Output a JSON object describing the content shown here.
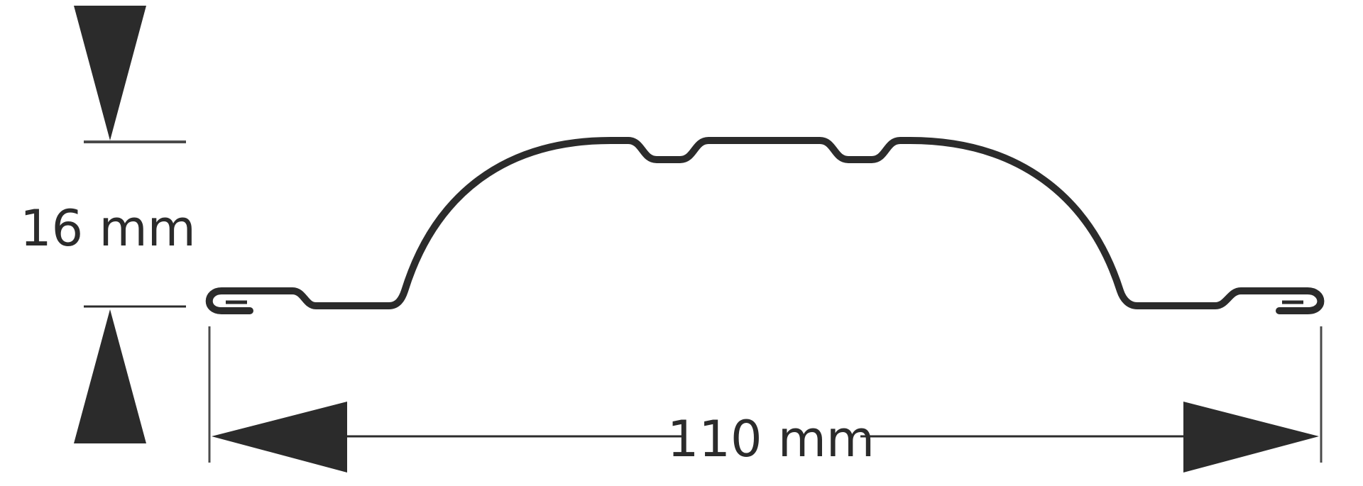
{
  "diagram": {
    "height_label": "16 mm",
    "width_label": "110 mm"
  },
  "colors": {
    "profile_stroke": "#2b2b2b",
    "dimension": "#2b2b2b",
    "background": "#ffffff"
  }
}
